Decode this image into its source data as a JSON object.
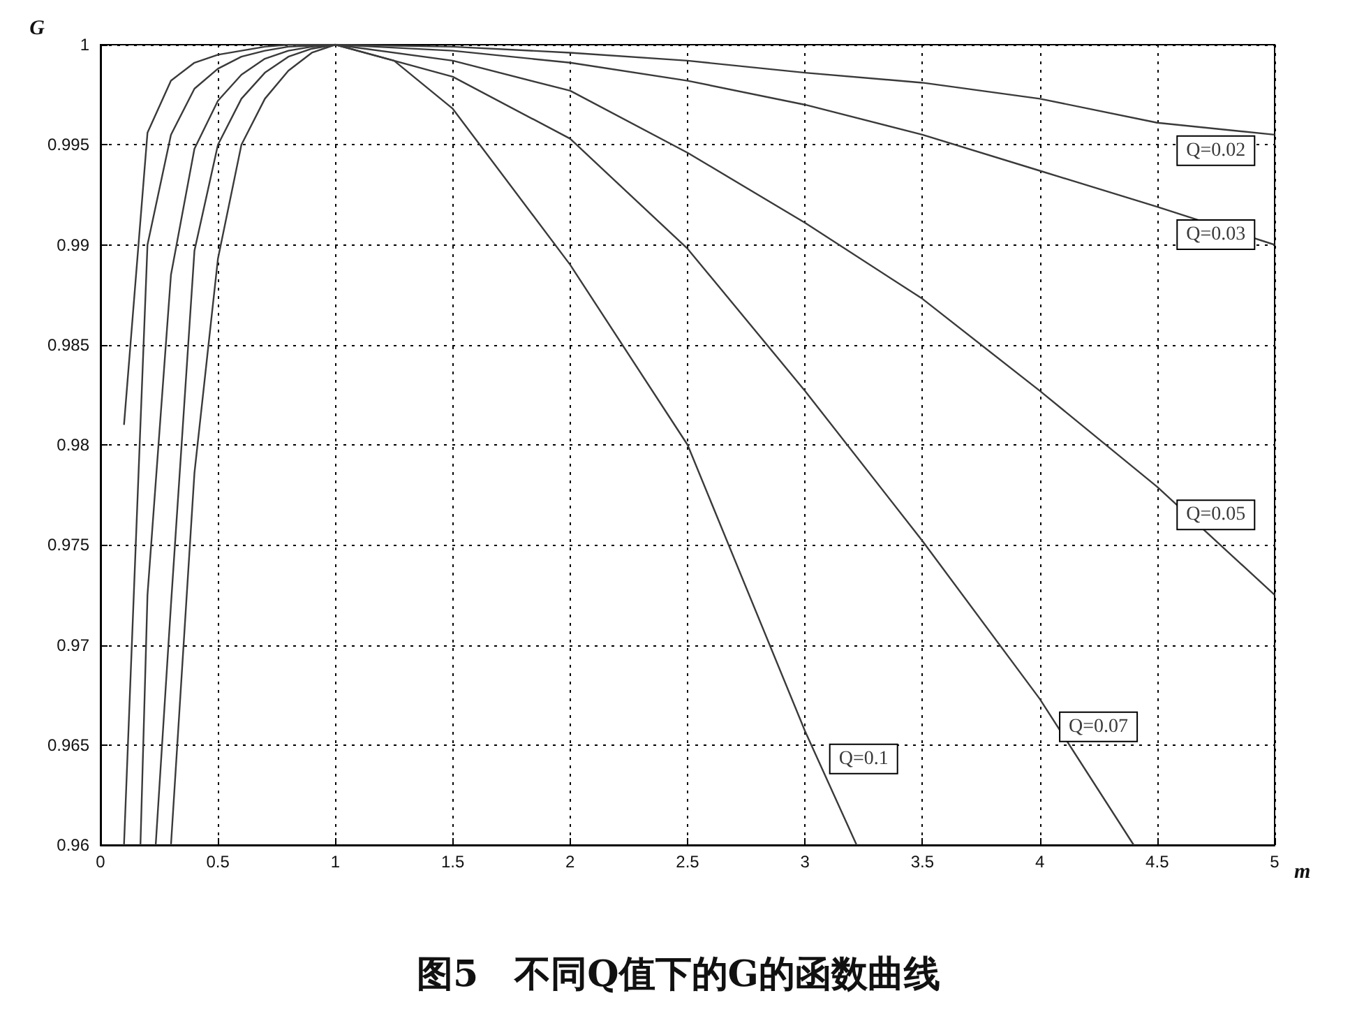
{
  "chart_data": {
    "type": "line",
    "title": "图5　不同Q值下的G的函数曲线",
    "xlabel": "m",
    "ylabel": "G",
    "xlim": [
      0,
      5
    ],
    "xticks": [
      0,
      0.5,
      1,
      1.5,
      2,
      2.5,
      3,
      3.5,
      4,
      4.5,
      5
    ],
    "ylim": [
      0.96,
      1
    ],
    "yticks": [
      0.96,
      0.965,
      0.97,
      0.975,
      0.98,
      0.985,
      0.99,
      0.995,
      1
    ],
    "grid": true,
    "legend": false,
    "marker": "none",
    "line_style": "solid",
    "series": [
      {
        "name": "Q=0.02",
        "color": "#3a3a3a",
        "x": [
          0.1,
          0.2,
          0.3,
          0.4,
          0.5,
          0.6,
          0.7,
          0.8,
          1,
          1.5,
          2,
          2.5,
          3,
          3.5,
          4,
          4.5,
          5
        ],
        "values": [
          0.981,
          0.9956,
          0.9982,
          0.9991,
          0.9995,
          0.9997,
          0.9999,
          1,
          1,
          0.9999,
          0.9996,
          0.9992,
          0.9986,
          0.9981,
          0.9973,
          0.9961,
          0.9955
        ]
      },
      {
        "name": "Q=0.03",
        "color": "#3a3a3a",
        "x": [
          0.1,
          0.2,
          0.3,
          0.4,
          0.5,
          0.6,
          0.7,
          0.8,
          1,
          1.5,
          2,
          2.5,
          3,
          3.5,
          4,
          4.5,
          5
        ],
        "values": [
          0.96,
          0.99,
          0.9955,
          0.9978,
          0.9988,
          0.9994,
          0.9997,
          0.9999,
          1,
          0.9997,
          0.9991,
          0.9982,
          0.997,
          0.9955,
          0.9937,
          0.9919,
          0.99
        ]
      },
      {
        "name": "Q=0.05",
        "color": "#3a3a3a",
        "x": [
          0.17,
          0.2,
          0.3,
          0.4,
          0.5,
          0.6,
          0.7,
          0.8,
          0.9,
          1,
          1.5,
          2,
          2.5,
          3,
          3.5,
          4,
          4.5,
          5
        ],
        "values": [
          0.96,
          0.9725,
          0.9885,
          0.9948,
          0.9972,
          0.9985,
          0.9993,
          0.9997,
          0.9999,
          1,
          0.9992,
          0.9977,
          0.9946,
          0.9911,
          0.9873,
          0.9827,
          0.9779,
          0.9725
        ]
      },
      {
        "name": "Q=0.07",
        "color": "#3a3a3a",
        "x": [
          0.235,
          0.3,
          0.4,
          0.5,
          0.6,
          0.7,
          0.8,
          0.9,
          1,
          1.5,
          2,
          2.5,
          3,
          3.5,
          4,
          4.4
        ],
        "values": [
          0.96,
          0.972,
          0.9897,
          0.995,
          0.9973,
          0.9986,
          0.9994,
          0.9998,
          1,
          0.9984,
          0.9953,
          0.9898,
          0.9827,
          0.9752,
          0.9673,
          0.96
        ]
      },
      {
        "name": "Q=0.1",
        "color": "#3a3a3a",
        "x": [
          0.3,
          0.4,
          0.5,
          0.6,
          0.7,
          0.8,
          0.9,
          1,
          1.25,
          1.5,
          2,
          2.5,
          3,
          3.22
        ],
        "values": [
          0.96,
          0.9786,
          0.9893,
          0.995,
          0.9973,
          0.9987,
          0.9996,
          1,
          0.9992,
          0.9968,
          0.989,
          0.98,
          0.9657,
          0.96
        ]
      }
    ]
  }
}
